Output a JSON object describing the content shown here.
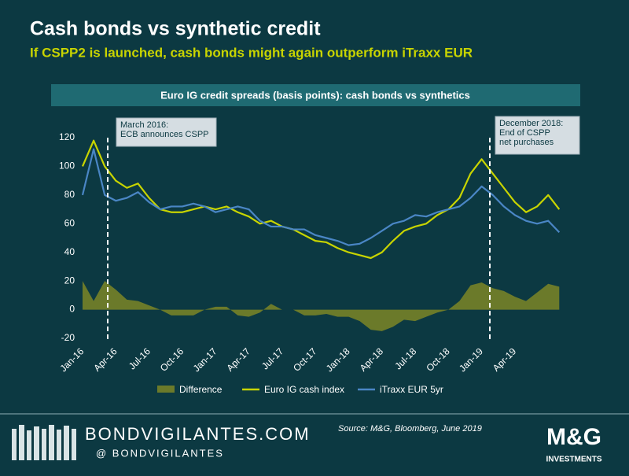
{
  "chart_data": {
    "type": "line",
    "title": "Cash bonds vs synthetic credit",
    "subtitle": "If CSPP2 is launched, cash bonds might again outperform iTraxx EUR",
    "chart_title": "Euro IG credit spreads (basis points): cash bonds vs synthetics",
    "categories": [
      "Jan-16",
      null,
      null,
      "Apr-16",
      null,
      null,
      "Jul-16",
      null,
      null,
      "Oct-16",
      null,
      null,
      "Jan-17",
      null,
      null,
      "Apr-17",
      null,
      null,
      "Jul-17",
      null,
      null,
      "Oct-17",
      null,
      null,
      "Jan-18",
      null,
      null,
      "Apr-18",
      null,
      null,
      "Jul-18",
      null,
      null,
      "Oct-18",
      null,
      null,
      "Jan-19",
      null,
      null,
      "Apr-19",
      null,
      null,
      null,
      null
    ],
    "series": [
      {
        "name": "Difference",
        "color": "#6b7a2a",
        "style": "area",
        "values": [
          20,
          6,
          20,
          14,
          7,
          6,
          3,
          0,
          -4,
          -4,
          -4,
          0,
          2,
          2,
          -4,
          -5,
          -2,
          4,
          0,
          0,
          -4,
          -4,
          -3,
          -5,
          -5,
          -8,
          -14,
          -15,
          -12,
          -7,
          -8,
          -5,
          -2,
          0,
          6,
          17,
          19,
          15,
          13,
          9,
          6,
          12,
          18,
          16
        ]
      },
      {
        "name": "Euro IG cash index",
        "color": "#c8d400",
        "style": "line",
        "values": [
          100,
          118,
          100,
          90,
          85,
          88,
          78,
          70,
          68,
          68,
          70,
          72,
          70,
          72,
          68,
          65,
          60,
          62,
          58,
          56,
          52,
          48,
          47,
          43,
          40,
          38,
          36,
          40,
          48,
          55,
          58,
          60,
          66,
          70,
          78,
          95,
          105,
          95,
          85,
          75,
          68,
          72,
          80,
          70
        ]
      },
      {
        "name": "iTraxx EUR 5yr",
        "color": "#4a86c5",
        "style": "line",
        "values": [
          80,
          112,
          80,
          76,
          78,
          82,
          75,
          70,
          72,
          72,
          74,
          72,
          68,
          70,
          72,
          70,
          62,
          58,
          58,
          56,
          56,
          52,
          50,
          48,
          45,
          46,
          50,
          55,
          60,
          62,
          66,
          65,
          68,
          70,
          72,
          78,
          86,
          80,
          72,
          66,
          62,
          60,
          62,
          54
        ]
      }
    ],
    "ylim": [
      -20,
      120
    ],
    "yticks": [
      -20,
      0,
      20,
      40,
      60,
      80,
      100,
      120
    ],
    "annotations": [
      {
        "lines": [
          "March 2016:",
          "ECB announces CSPP"
        ]
      },
      {
        "lines": [
          "December 2018:",
          "End of CSPP",
          "net purchases"
        ]
      }
    ],
    "source": "Source: M&G, Bloomberg, June 2019",
    "site": "BONDVIGILANTES.COM",
    "handle": "@ BONDVIGILANTES",
    "logo": "M&G",
    "logo_sub": "INVESTMENTS"
  }
}
